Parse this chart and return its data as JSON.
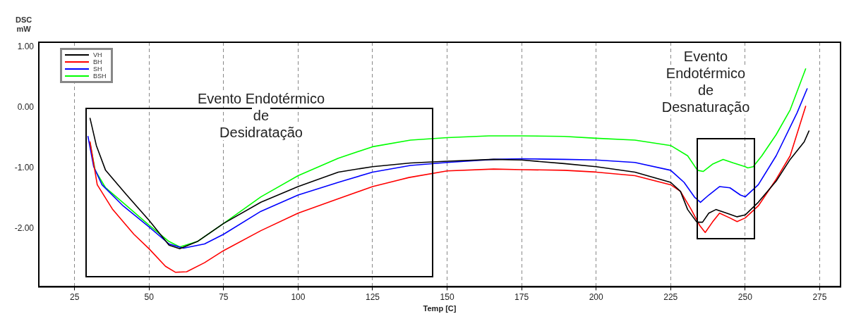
{
  "chart_data": {
    "type": "line",
    "xlabel": "Temp [C]",
    "ylabel": "DSC\nmW",
    "xlim": [
      13,
      282
    ],
    "ylim": [
      -2.97,
      1.08
    ],
    "xticks": [
      25,
      50,
      75,
      100,
      125,
      150,
      175,
      200,
      225,
      250,
      275
    ],
    "yticks": [
      {
        "value": 1,
        "label": "1.00"
      },
      {
        "value": 0,
        "label": "0.00"
      },
      {
        "value": -1,
        "label": "-1.00"
      },
      {
        "value": -2,
        "label": "-2.00"
      }
    ],
    "grid": "x",
    "legend": "top left",
    "marker": "none",
    "line_style": "solid",
    "annotations": [
      "Evento Endotérmico\nde\nDesidratação",
      "Evento\nEndotérmico\nde\nDesnaturação"
    ],
    "series": [
      {
        "name": "VH",
        "color": "#000000",
        "x": [
          30.2,
          32.3,
          35.4,
          42.5,
          50,
          56.7,
          60.3,
          66.2,
          75,
          87.5,
          100,
          113.5,
          125,
          137.7,
          150,
          165.6,
          175,
          189.3,
          200,
          213,
          225,
          228.3,
          230.7,
          233.8,
          235.7,
          237.8,
          240.2,
          243.8,
          247.3,
          250,
          254.4,
          260.4,
          265.1,
          269.8,
          271.4
        ],
        "values": [
          -0.18,
          -0.63,
          -1.04,
          -1.45,
          -1.87,
          -2.28,
          -2.34,
          -2.22,
          -1.92,
          -1.57,
          -1.31,
          -1.07,
          -0.98,
          -0.92,
          -0.89,
          -0.86,
          -0.87,
          -0.93,
          -0.98,
          -1.07,
          -1.24,
          -1.39,
          -1.69,
          -1.9,
          -1.9,
          -1.75,
          -1.69,
          -1.75,
          -1.81,
          -1.78,
          -1.57,
          -1.22,
          -0.86,
          -0.57,
          -0.39
        ]
      },
      {
        "name": "BH",
        "color": "#ff0000",
        "x": [
          30.2,
          32.6,
          37.8,
          44.9,
          50,
          55.5,
          58.9,
          62.6,
          68.6,
          75,
          87.5,
          100,
          113.5,
          125,
          137.2,
          150,
          165.6,
          175,
          189.3,
          200,
          213,
          225,
          228.3,
          231.9,
          234.7,
          236.6,
          239,
          241.4,
          244.9,
          247.3,
          250,
          254.4,
          260.4,
          265.1,
          270.3
        ],
        "values": [
          -0.57,
          -1.28,
          -1.69,
          -2.1,
          -2.34,
          -2.63,
          -2.73,
          -2.72,
          -2.57,
          -2.37,
          -2.04,
          -1.75,
          -1.51,
          -1.31,
          -1.16,
          -1.05,
          -1.02,
          -1.03,
          -1.04,
          -1.07,
          -1.13,
          -1.28,
          -1.39,
          -1.69,
          -1.95,
          -2.07,
          -1.9,
          -1.75,
          -1.83,
          -1.89,
          -1.83,
          -1.63,
          -1.19,
          -0.8,
          0.02
        ]
      },
      {
        "name": "SH",
        "color": "#0000ff",
        "x": [
          29.5,
          31.4,
          34.2,
          41.3,
          50,
          56.7,
          61.5,
          68.6,
          75,
          87.5,
          100,
          113.5,
          125,
          137.7,
          150,
          165.6,
          175,
          189.3,
          200,
          213,
          225,
          229.5,
          233.1,
          235,
          237.8,
          241.4,
          244.9,
          248.4,
          250,
          254.4,
          260.4,
          267.4,
          270.8
        ],
        "values": [
          -0.48,
          -0.98,
          -1.28,
          -1.63,
          -1.98,
          -2.26,
          -2.33,
          -2.26,
          -2.1,
          -1.72,
          -1.45,
          -1.24,
          -1.07,
          -0.96,
          -0.91,
          -0.86,
          -0.85,
          -0.86,
          -0.87,
          -0.91,
          -1.04,
          -1.24,
          -1.49,
          -1.57,
          -1.45,
          -1.31,
          -1.33,
          -1.45,
          -1.48,
          -1.28,
          -0.8,
          -0.09,
          0.31
        ]
      },
      {
        "name": "BSH",
        "color": "#00ff00",
        "x": [
          30.2,
          31.9,
          35.4,
          42.5,
          50,
          56.7,
          60.3,
          66.2,
          75,
          87.5,
          100,
          113.5,
          125,
          137.7,
          150,
          164,
          175,
          189.3,
          200,
          213,
          225,
          230.7,
          234,
          235.9,
          239,
          242.6,
          246.1,
          250,
          250.9,
          252.7,
          255.6,
          260.4,
          265.1,
          270.3
        ],
        "values": [
          -0.59,
          -1.04,
          -1.33,
          -1.63,
          -1.95,
          -2.22,
          -2.31,
          -2.22,
          -1.92,
          -1.48,
          -1.13,
          -0.84,
          -0.65,
          -0.54,
          -0.5,
          -0.47,
          -0.47,
          -0.48,
          -0.51,
          -0.54,
          -0.63,
          -0.8,
          -1.04,
          -1.06,
          -0.94,
          -0.86,
          -0.92,
          -0.98,
          -1,
          -0.98,
          -0.8,
          -0.45,
          -0.04,
          0.64
        ]
      }
    ]
  }
}
